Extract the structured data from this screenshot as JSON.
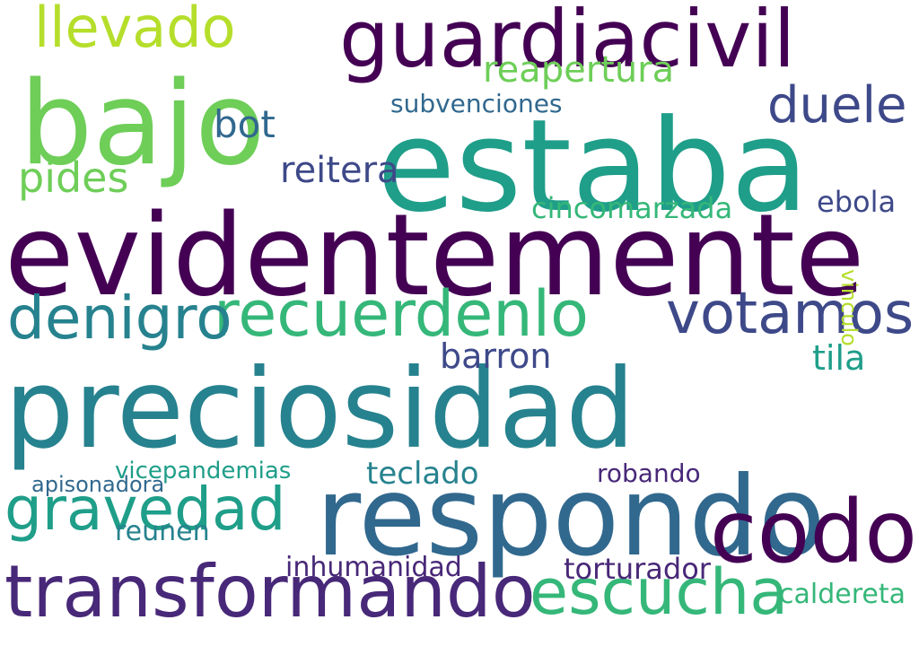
{
  "palette": [
    "#440154",
    "#482878",
    "#3e4989",
    "#31688e",
    "#26828e",
    "#1f9e89",
    "#35b779",
    "#6ece58",
    "#b5de2b",
    "#fde725"
  ],
  "words": [
    {
      "text": "bajo",
      "color": "#6ece58"
    },
    {
      "text": "estaba",
      "color": "#1f9e89"
    },
    {
      "text": "evidentemente",
      "color": "#440154"
    },
    {
      "text": "preciosidad",
      "color": "#26828e"
    },
    {
      "text": "respondo",
      "color": "#31688e"
    },
    {
      "text": "guardiacivil",
      "color": "#440154"
    },
    {
      "text": "transformando",
      "color": "#482878"
    },
    {
      "text": "llevado",
      "color": "#b5de2b"
    },
    {
      "text": "codo",
      "color": "#440154"
    },
    {
      "text": "recuerdenlo",
      "color": "#35b779"
    },
    {
      "text": "votamos",
      "color": "#3e4989"
    },
    {
      "text": "denigro",
      "color": "#26828e"
    },
    {
      "text": "gravedad",
      "color": "#1f9e89"
    },
    {
      "text": "escucha",
      "color": "#35b779"
    },
    {
      "text": "duele",
      "color": "#3e4989"
    },
    {
      "text": "reitera",
      "color": "#3e4989"
    },
    {
      "text": "pides",
      "color": "#6ece58"
    },
    {
      "text": "reapertura",
      "color": "#6ece58"
    },
    {
      "text": "cincomarzada",
      "color": "#35b779"
    },
    {
      "text": "barron",
      "color": "#3e4989"
    },
    {
      "text": "ebola",
      "color": "#3e4989"
    },
    {
      "text": "tila",
      "color": "#1f9e89"
    },
    {
      "text": "bot",
      "color": "#31688e"
    },
    {
      "text": "subvenciones",
      "color": "#31688e"
    },
    {
      "text": "inhumanidad",
      "color": "#482878"
    },
    {
      "text": "torturador",
      "color": "#482878"
    },
    {
      "text": "vicepandemias",
      "color": "#1f9e89"
    },
    {
      "text": "teclado",
      "color": "#26828e"
    },
    {
      "text": "robando",
      "color": "#482878"
    },
    {
      "text": "reunen",
      "color": "#26828e"
    },
    {
      "text": "apisonadora",
      "color": "#31688e"
    },
    {
      "text": "caldereta",
      "color": "#35b779"
    },
    {
      "text": "vinculo",
      "color": "#b5de2b"
    }
  ]
}
